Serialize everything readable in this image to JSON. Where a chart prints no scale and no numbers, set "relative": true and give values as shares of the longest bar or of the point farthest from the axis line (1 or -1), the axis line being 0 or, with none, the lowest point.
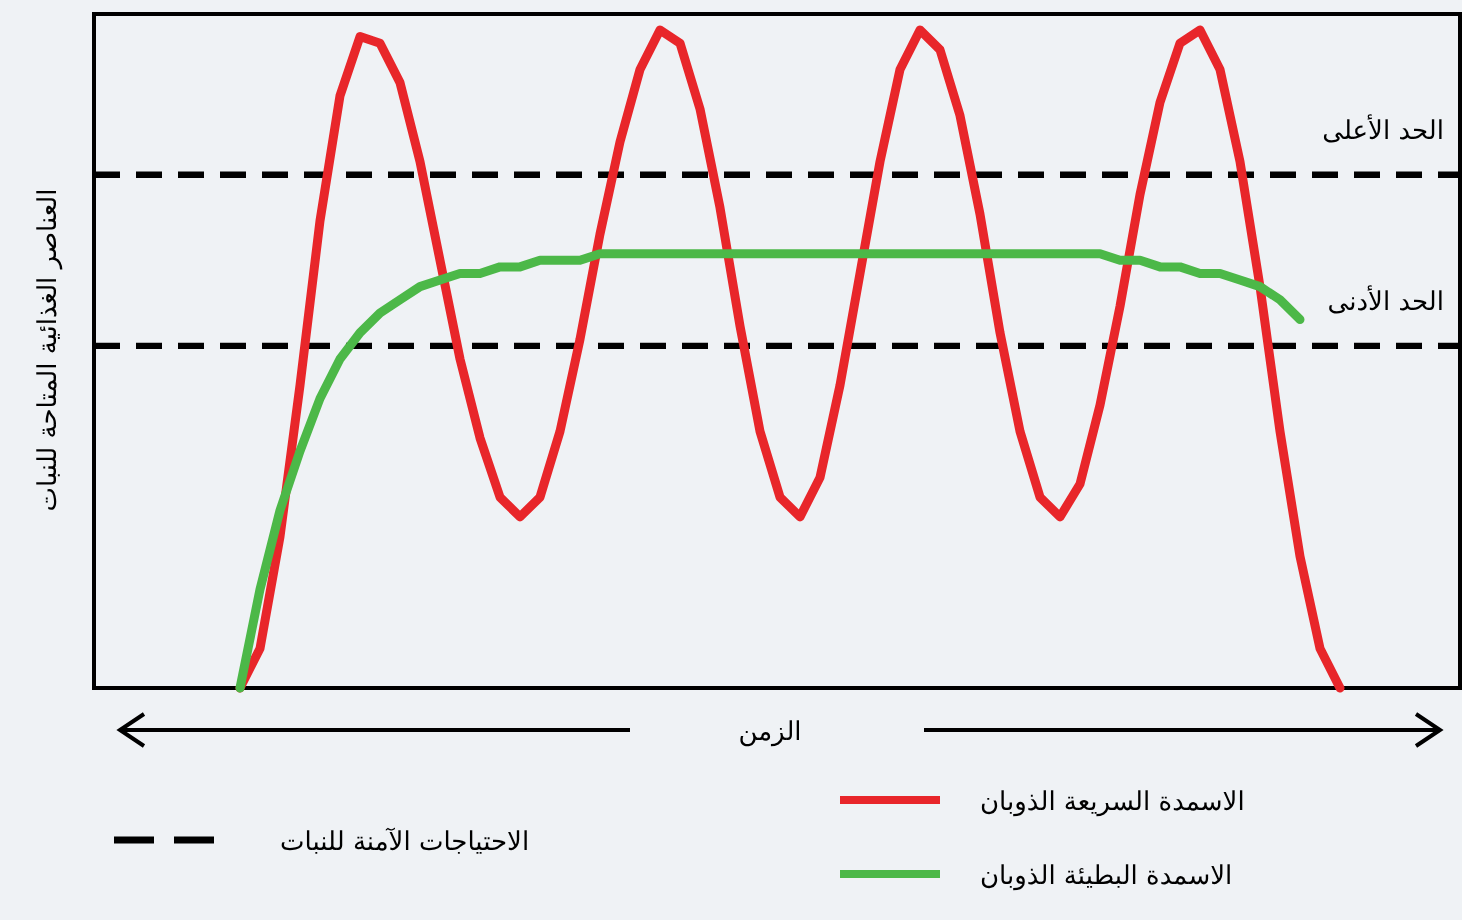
{
  "chart_data": {
    "type": "line",
    "ylabel": "العناصر الغذائية المتاحة للنبات",
    "xlabel": "الزمن",
    "relative": true,
    "legend": "bottom",
    "categories": [
      null,
      null,
      null,
      null,
      null,
      null,
      null,
      null,
      null,
      null,
      null,
      null,
      null,
      null,
      null,
      null,
      null,
      null,
      null,
      null,
      null,
      null,
      null,
      null,
      null,
      null,
      null,
      null,
      null,
      null,
      null,
      null,
      null,
      null,
      null,
      null,
      null,
      null,
      null,
      null,
      null,
      null,
      null,
      null,
      null,
      null,
      null,
      null,
      null,
      null,
      null,
      null,
      null,
      null,
      null,
      null,
      null,
      null,
      null,
      null,
      null,
      null,
      null,
      null,
      null,
      null,
      null,
      null
    ],
    "series": [
      {
        "name": "الاسمدة السريعة الذوبان",
        "color": "#e8262a",
        "values": [
          null,
          null,
          null,
          null,
          null,
          null,
          null,
          0,
          0.06,
          0.23,
          0.46,
          0.71,
          0.9,
          0.99,
          0.98,
          0.92,
          0.8,
          0.65,
          0.5,
          0.38,
          0.29,
          0.26,
          0.29,
          0.39,
          0.53,
          0.69,
          0.83,
          0.94,
          1.0,
          0.98,
          0.88,
          0.73,
          0.55,
          0.39,
          0.29,
          0.26,
          0.32,
          0.46,
          0.63,
          0.8,
          0.94,
          1.0,
          0.97,
          0.87,
          0.72,
          0.54,
          0.39,
          0.29,
          0.26,
          0.31,
          0.43,
          0.58,
          0.75,
          0.89,
          0.98,
          1.0,
          0.94,
          0.8,
          0.61,
          0.39,
          0.2,
          0.06,
          0,
          null,
          null,
          null,
          null,
          null
        ]
      },
      {
        "name": "الاسمدة البطيئة الذوبان",
        "color": "#4cb848",
        "values": [
          null,
          null,
          null,
          null,
          null,
          null,
          null,
          0,
          0.15,
          0.27,
          0.36,
          0.44,
          0.5,
          0.54,
          0.57,
          0.59,
          0.61,
          0.62,
          0.63,
          0.63,
          0.64,
          0.64,
          0.65,
          0.65,
          0.65,
          0.66,
          0.66,
          0.66,
          0.66,
          0.66,
          0.66,
          0.66,
          0.66,
          0.66,
          0.66,
          0.66,
          0.66,
          0.66,
          0.66,
          0.66,
          0.66,
          0.66,
          0.66,
          0.66,
          0.66,
          0.66,
          0.66,
          0.66,
          0.66,
          0.66,
          0.66,
          0.65,
          0.65,
          0.64,
          0.64,
          0.63,
          0.63,
          0.62,
          0.61,
          0.59,
          0.56,
          null,
          null,
          null,
          null,
          null,
          null,
          null
        ]
      }
    ],
    "ref_lines": [
      {
        "axis": "y",
        "value": 0.78,
        "label": "الحد الأعلى",
        "color": "#000000",
        "line_style": "dashed"
      },
      {
        "axis": "y",
        "value": 0.52,
        "label": "الحد الأدنى",
        "color": "#000000",
        "line_style": "dashed"
      }
    ],
    "annotations": [
      "الاحتياجات الآمنة للنبات"
    ]
  }
}
